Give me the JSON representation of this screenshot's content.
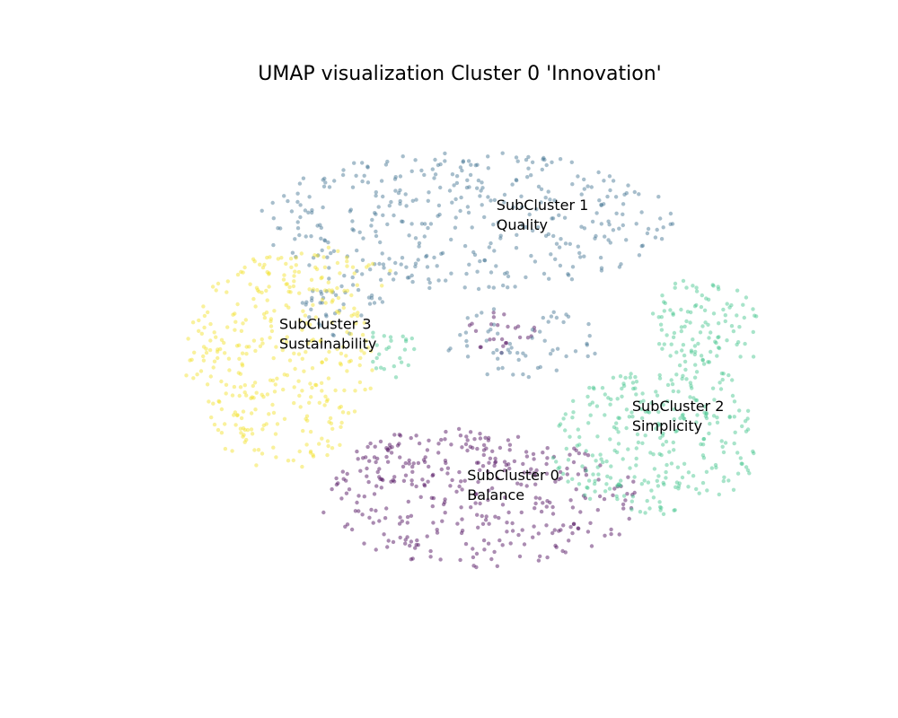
{
  "chart_data": {
    "type": "scatter",
    "title": "UMAP visualization Cluster 0 'Innovation'",
    "xlabel": "",
    "ylabel": "",
    "axes_visible": false,
    "grid": false,
    "legend": "none",
    "xlim": [
      0,
      10
    ],
    "ylim": [
      0,
      10
    ],
    "point_alpha": 0.45,
    "series": [
      {
        "cluster": 0,
        "color": "#440154",
        "blobs": [
          {
            "cx": 5.3,
            "cy": 2.4,
            "rx": 2.3,
            "ry": 1.25,
            "n": 300
          },
          {
            "cx": 4.6,
            "cy": 3.2,
            "rx": 1.2,
            "ry": 0.6,
            "n": 60
          },
          {
            "cx": 5.6,
            "cy": 5.6,
            "rx": 0.5,
            "ry": 0.4,
            "n": 25
          }
        ]
      },
      {
        "cluster": 1,
        "color": "#3b6e8f",
        "blobs": [
          {
            "cx": 5.1,
            "cy": 7.7,
            "rx": 3.0,
            "ry": 1.3,
            "n": 370
          },
          {
            "cx": 3.3,
            "cy": 6.1,
            "rx": 0.6,
            "ry": 0.6,
            "n": 40
          },
          {
            "cx": 5.9,
            "cy": 5.4,
            "rx": 1.1,
            "ry": 0.7,
            "n": 60
          }
        ]
      },
      {
        "cluster": 2,
        "color": "#3fc48a",
        "blobs": [
          {
            "cx": 7.8,
            "cy": 3.5,
            "rx": 1.5,
            "ry": 1.35,
            "n": 270
          },
          {
            "cx": 8.5,
            "cy": 5.6,
            "rx": 0.8,
            "ry": 1.1,
            "n": 120
          },
          {
            "cx": 4.0,
            "cy": 5.2,
            "rx": 0.4,
            "ry": 0.55,
            "n": 25
          }
        ]
      },
      {
        "cluster": 3,
        "color": "#f2e024",
        "blobs": [
          {
            "cx": 2.4,
            "cy": 5.0,
            "rx": 1.35,
            "ry": 2.05,
            "n": 320
          },
          {
            "cx": 3.1,
            "cy": 6.7,
            "rx": 0.9,
            "ry": 0.5,
            "n": 40
          }
        ]
      }
    ],
    "annotations": [
      {
        "lines": [
          "SubCluster 1",
          "Quality"
        ],
        "x": 5.52,
        "y": 7.9
      },
      {
        "lines": [
          "SubCluster 3",
          "Sustainability"
        ],
        "x": 2.4,
        "y": 5.65
      },
      {
        "lines": [
          "SubCluster 2",
          "Simplicity"
        ],
        "x": 7.47,
        "y": 4.1
      },
      {
        "lines": [
          "SubCluster 0",
          "Balance"
        ],
        "x": 5.1,
        "y": 2.8
      }
    ]
  }
}
